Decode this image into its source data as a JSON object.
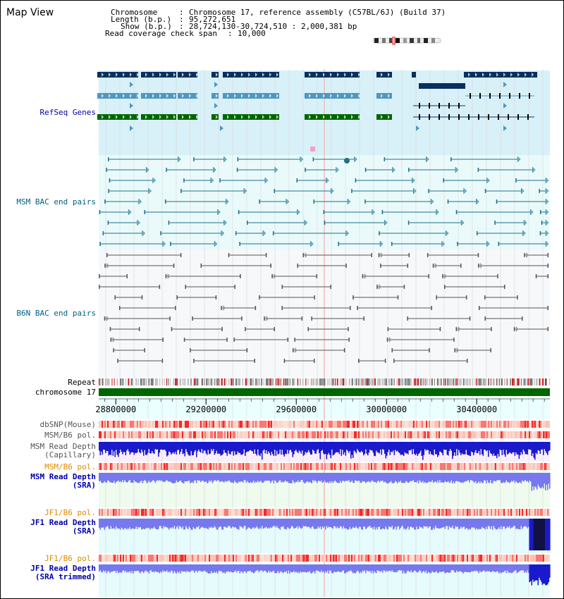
{
  "title": "Map View",
  "info": {
    "chromosome_label": "Chromosome",
    "chromosome_value": "Chromosome 17, reference assembly (C57BL/6J) (Build 37)",
    "length_label": "Length (b.p.)",
    "length_value": "95,272,651",
    "show_label": "Show (b.p.)",
    "show_value": "28,724,130-30,724,510 : 2,000,381 bp",
    "coverage_label": "Read coverage check span",
    "coverage_value": "10,000"
  },
  "tracks": {
    "refseq": "RefSeq Genes",
    "msm_bac": "MSM BAC end pairs",
    "b6n_bac": "B6N BAC end pairs",
    "repeat": "Repeat",
    "chromosome": "chromosome 17",
    "dbsnp": "dbSNP(Mouse)",
    "msm_b6_pol_1": "MSM/B6 pol.",
    "msm_depth_cap_1": "MSM Read Depth",
    "msm_depth_cap_2": "(Capillary)",
    "msm_b6_pol_2": "MSM/B6 pol.",
    "msm_depth_sra_1": "MSM Read Depth",
    "msm_depth_sra_2": "(SRA)",
    "jf1_b6_pol_1": "JF1/B6 pol.",
    "jf1_depth_sra_1": "JF1 Read Depth",
    "jf1_depth_sra_2": "(SRA)",
    "jf1_b6_pol_2": "JF1/B6 pol.",
    "jf1_depth_trim_1": "JF1 Read Depth",
    "jf1_depth_trim_2": "(SRA trimmed)"
  },
  "axis": {
    "ticks": [
      "28800000",
      "29200000",
      "29600000",
      "30000000",
      "30400000"
    ]
  },
  "colors": {
    "refseq_bg": "#d8f0f8",
    "msm_bg": "#eafafa",
    "b6n_bg": "#f6f8fa",
    "gene_dark": "#0a2f5f",
    "gene_light": "#4f97bf",
    "gene_green": "#006600",
    "msm_bac": "#1f6f8f",
    "b6n_bac": "#555555",
    "chrom_bar": "#006600",
    "depth_dark": "#1a1acc",
    "depth_light": "#7777ee",
    "label_blue": "#0000aa",
    "label_orange": "#e08a00",
    "label_teal": "#006080"
  }
}
